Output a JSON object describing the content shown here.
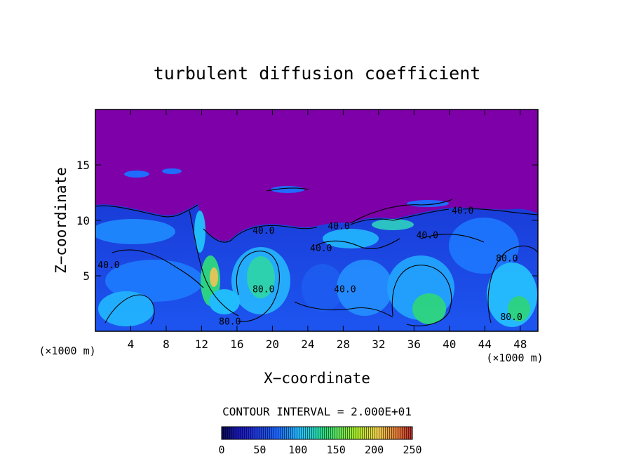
{
  "chart_data": {
    "type": "heatmap",
    "title": "turbulent diffusion coefficient",
    "xlabel": "X−coordinate",
    "ylabel": "Z−coordinate",
    "x_unit_left": "(×1000 m)",
    "x_unit_right": "(×1000 m)",
    "xlim": [
      0,
      50
    ],
    "ylim": [
      0,
      20
    ],
    "x_ticks": [
      4,
      8,
      12,
      16,
      20,
      24,
      28,
      32,
      36,
      40,
      44,
      48
    ],
    "y_ticks": [
      5,
      10,
      15
    ],
    "contour_interval_text": "CONTOUR INTERVAL = 2.000E+01",
    "contour_interval": 20,
    "contour_labels": [
      {
        "text": "40.0",
        "x": 1.5,
        "y": 5.7
      },
      {
        "text": "40.0",
        "x": 19.0,
        "y": 8.8
      },
      {
        "text": "40.0",
        "x": 25.5,
        "y": 7.2
      },
      {
        "text": "40.0",
        "x": 27.5,
        "y": 9.2
      },
      {
        "text": "40.0",
        "x": 28.2,
        "y": 3.5
      },
      {
        "text": "40.0",
        "x": 37.5,
        "y": 8.4
      },
      {
        "text": "40.0",
        "x": 41.5,
        "y": 10.6
      },
      {
        "text": "80.0",
        "x": 15.2,
        "y": 0.6
      },
      {
        "text": "80.0",
        "x": 19.0,
        "y": 3.5
      },
      {
        "text": "80.0",
        "x": 46.5,
        "y": 6.3
      },
      {
        "text": "80.0",
        "x": 47.0,
        "y": 1.0
      }
    ],
    "colorbar": {
      "min": 0,
      "max": 250,
      "ticks": [
        "0",
        "50",
        "100",
        "150",
        "200",
        "250"
      ],
      "colors": [
        "#7a00a8",
        "#1f1fd0",
        "#1f6cff",
        "#22c8ff",
        "#2fe07a",
        "#a8ee2a",
        "#f4d24a",
        "#e07a3a",
        "#c02a2a"
      ]
    },
    "background_color": "#7d00a8",
    "grid": false
  }
}
